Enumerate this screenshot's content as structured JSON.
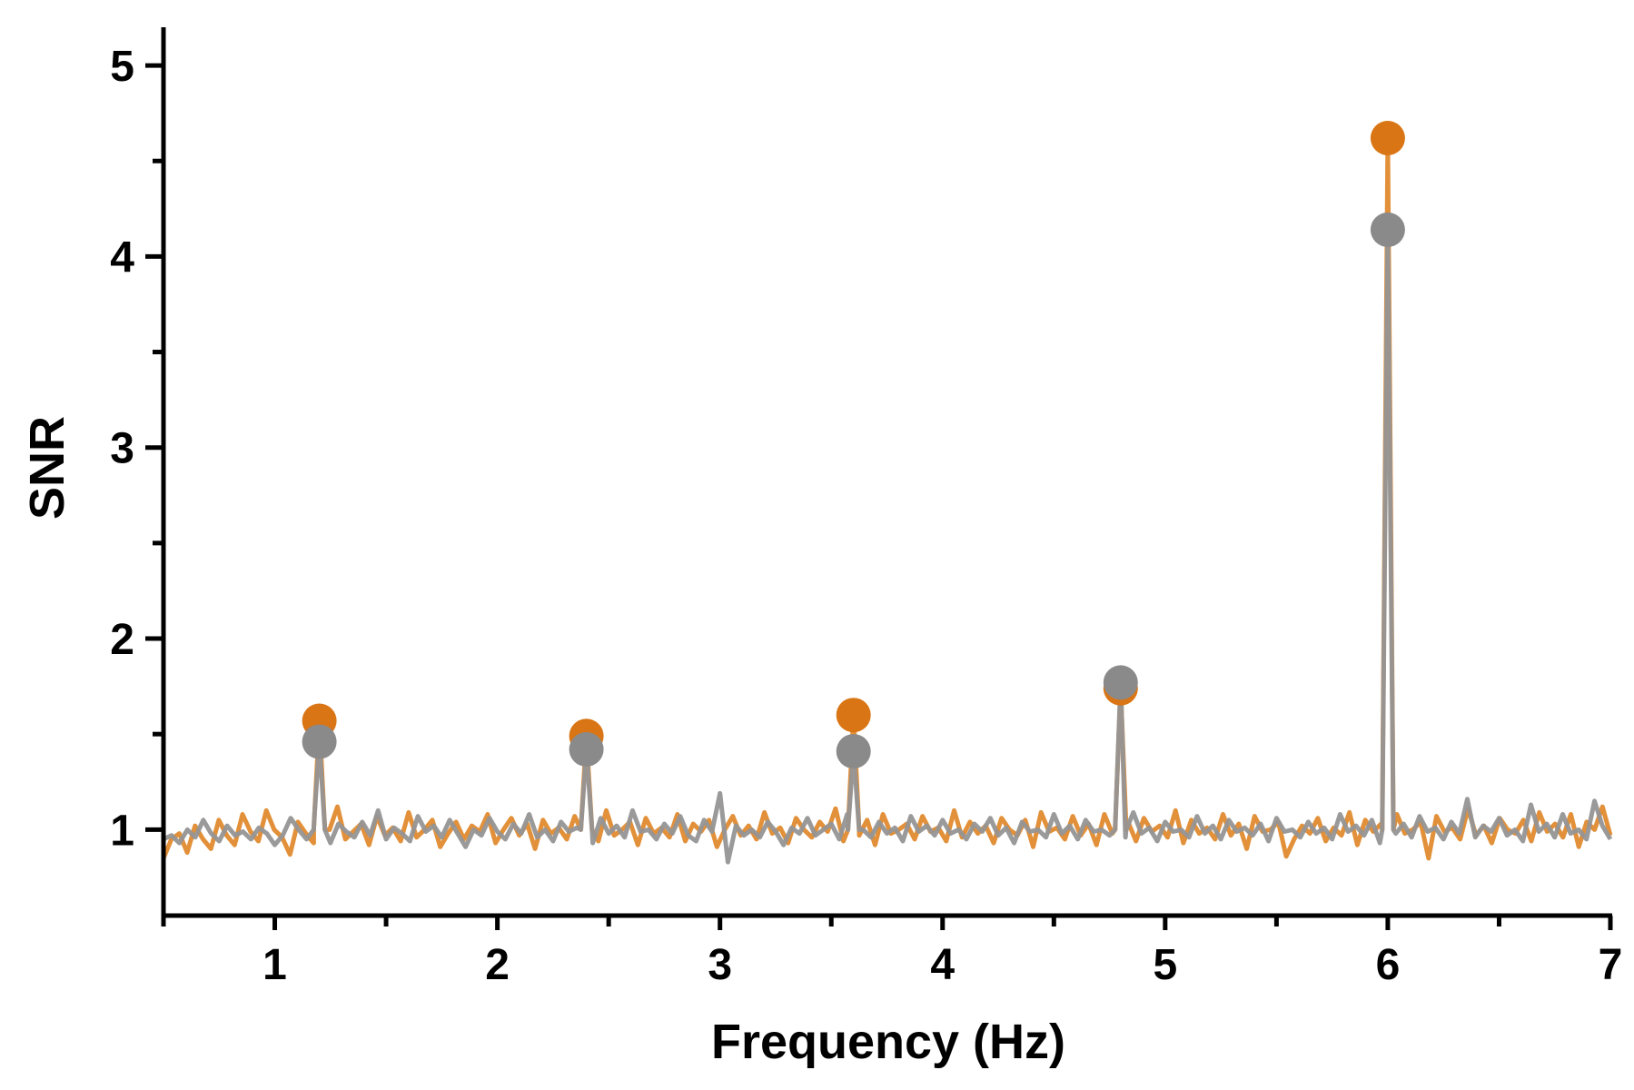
{
  "chart_data": {
    "type": "line",
    "title": "",
    "xlabel": "Frequency (Hz)",
    "ylabel": "SNR",
    "xlim": [
      0.5,
      7
    ],
    "ylim": [
      0.55,
      5.2
    ],
    "x_ticks": [
      1,
      2,
      3,
      4,
      5,
      6,
      7
    ],
    "x_minor_ticks": [
      0.5,
      1.5,
      2.5,
      3.5,
      4.5,
      5.5,
      6.5
    ],
    "y_ticks": [
      1,
      2,
      3,
      4,
      5
    ],
    "y_minor_ticks": [
      1.5,
      2.5,
      3.5,
      4.5
    ],
    "grid": false,
    "legend": "none",
    "colors": {
      "orange": "#E08A2E",
      "orange_marker": "#D97514",
      "gray": "#959595",
      "gray_marker": "#8A8A8A",
      "axis": "#000000"
    },
    "series": [
      {
        "color_key": "orange",
        "baseline": [
          0.85,
          0.95,
          0.98,
          0.88,
          1.02,
          0.95,
          0.9,
          1.05,
          0.97,
          0.92,
          1.08,
          0.99,
          0.94,
          1.1,
          1.0,
          0.96,
          0.87,
          1.04,
          0.98,
          0.93,
          1.06,
          1.0,
          1.12,
          0.95,
          0.99,
          1.03,
          0.92,
          1.07,
          0.97,
          1.01,
          0.94,
          1.09,
          0.96,
          1.0,
          1.05,
          0.91,
          0.98,
          1.04,
          0.95,
          1.02,
          0.99,
          1.08,
          0.93,
          1.0,
          1.06,
          0.97,
          1.03,
          0.9,
          1.05,
          0.98,
          1.01,
          0.95,
          1.07,
          0.99,
          1.02,
          0.94,
          1.1,
          0.97,
          1.0,
          1.04,
          0.92,
          1.06,
          0.98,
          1.01,
          0.96,
          1.08,
          0.94,
          1.03,
          0.99,
          1.05,
          0.91,
          1.0,
          1.07,
          0.97,
          1.02,
          0.95,
          1.09,
          0.98,
          1.01,
          0.93,
          1.06,
          1.0,
          0.96,
          1.04,
          0.99,
          1.11,
          0.94,
          1.02,
          0.97,
          1.05,
          0.92,
          1.08,
          0.98,
          1.0,
          1.03,
          0.95,
          1.07,
          0.99,
          1.01,
          0.94,
          1.1,
          0.96,
          1.04,
          0.98,
          1.02,
          0.93,
          1.06,
          1.0,
          0.97,
          1.05,
          0.91,
          1.09,
          0.99,
          1.01,
          0.95,
          1.07,
          0.97,
          1.03,
          0.92,
          1.08,
          0.98,
          1.0,
          1.04,
          0.94,
          1.06,
          0.99,
          1.02,
          0.96,
          1.1,
          0.93,
          1.05,
          0.98,
          1.01,
          0.95,
          1.08,
          0.97,
          1.03,
          0.9,
          1.07,
          0.99,
          1.0,
          1.04,
          0.86,
          0.95,
          1.02,
          0.98,
          1.06,
          0.94,
          1.01,
          0.97,
          1.09,
          0.92,
          1.05,
          0.99,
          1.03,
          0.96,
          1.08,
          0.98,
          1.0,
          1.04,
          0.85,
          1.07,
          0.99,
          1.01,
          0.95,
          1.11,
          0.97,
          1.02,
          0.93,
          1.06,
          1.0,
          0.98,
          1.05,
          0.94,
          1.09,
          0.99,
          1.03,
          0.96,
          1.08,
          0.91,
          1.04,
          1.0,
          1.12,
          0.97
        ],
        "peaks": [
          {
            "x": 1.2,
            "y": 1.57
          },
          {
            "x": 2.4,
            "y": 1.49
          },
          {
            "x": 3.6,
            "y": 1.6
          },
          {
            "x": 4.8,
            "y": 1.74
          },
          {
            "x": 6.0,
            "y": 4.62
          }
        ]
      },
      {
        "color_key": "gray",
        "baseline": [
          0.95,
          0.97,
          0.93,
          1.0,
          0.96,
          1.05,
          0.98,
          0.94,
          1.02,
          0.97,
          0.99,
          0.95,
          1.01,
          0.98,
          0.92,
          0.97,
          1.06,
          1.0,
          0.95,
          1.08,
          0.98,
          0.93,
          1.03,
          0.99,
          0.96,
          1.04,
          0.97,
          1.1,
          0.95,
          1.01,
          0.98,
          0.94,
          1.07,
          0.99,
          1.02,
          0.96,
          1.05,
          0.98,
          0.91,
          1.0,
          0.97,
          1.06,
          0.99,
          0.95,
          1.03,
          0.98,
          1.08,
          0.96,
          1.0,
          0.94,
          1.04,
          0.99,
          1.01,
          0.97,
          0.93,
          1.06,
          0.98,
          1.02,
          0.96,
          1.1,
          0.99,
          1.0,
          0.95,
          1.03,
          0.98,
          1.07,
          0.97,
          0.94,
          1.05,
          0.99,
          1.19,
          0.83,
          1.02,
          0.97,
          1.0,
          0.96,
          1.04,
          0.99,
          0.92,
          1.01,
          0.98,
          1.06,
          0.97,
          1.0,
          1.03,
          0.95,
          1.08,
          0.99,
          1.0,
          0.96,
          1.04,
          0.98,
          1.01,
          0.94,
          1.07,
          0.99,
          1.02,
          0.97,
          1.05,
          0.98,
          1.0,
          0.95,
          1.03,
          0.99,
          1.06,
          0.97,
          1.01,
          0.93,
          1.04,
          0.99,
          1.0,
          0.96,
          1.08,
          0.98,
          1.02,
          0.95,
          1.05,
          0.99,
          1.0,
          0.97,
          1.03,
          0.96,
          1.09,
          0.98,
          1.01,
          0.94,
          1.04,
          0.99,
          1.0,
          0.96,
          1.07,
          0.98,
          1.02,
          0.95,
          1.05,
          0.99,
          1.01,
          0.97,
          1.03,
          0.94,
          1.06,
          0.99,
          1.0,
          0.96,
          1.04,
          0.98,
          1.01,
          0.95,
          1.08,
          0.99,
          1.02,
          0.97,
          1.05,
          0.93,
          1.0,
          0.98,
          1.03,
          0.96,
          1.07,
          0.99,
          1.01,
          0.95,
          1.04,
          0.98,
          1.16,
          0.96,
          1.02,
          0.99,
          1.06,
          0.97,
          1.0,
          0.94,
          1.13,
          0.99,
          1.03,
          0.96,
          1.08,
          0.98,
          1.0,
          0.95,
          1.15,
          1.02,
          0.95
        ],
        "peaks": [
          {
            "x": 1.2,
            "y": 1.46
          },
          {
            "x": 2.4,
            "y": 1.42
          },
          {
            "x": 3.6,
            "y": 1.41
          },
          {
            "x": 4.8,
            "y": 1.77
          },
          {
            "x": 6.0,
            "y": 4.14
          }
        ]
      }
    ]
  }
}
